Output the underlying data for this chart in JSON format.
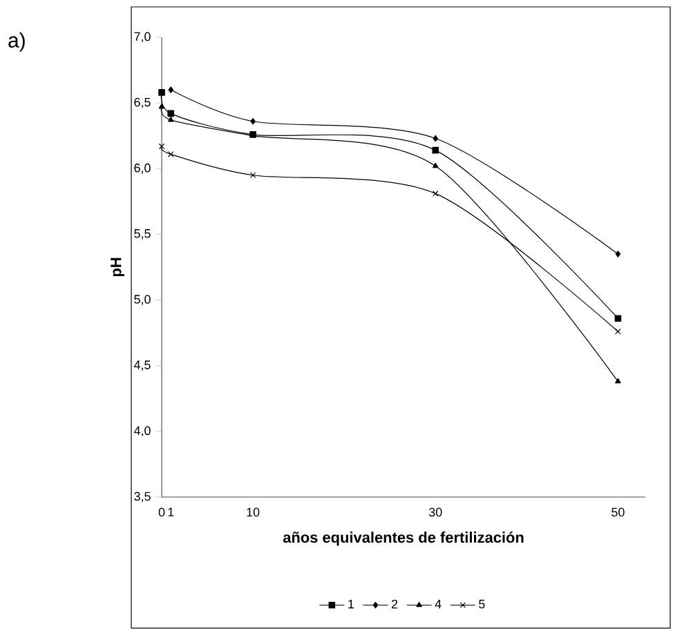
{
  "chart_data": {
    "type": "line",
    "xlabel": "años equivalentes de fertilización",
    "ylabel": "pH",
    "annotations": [
      "a)"
    ],
    "xlim": [
      0,
      53
    ],
    "xticks": [
      0,
      1,
      10,
      30,
      50
    ],
    "ylim": [
      3.5,
      7.0
    ],
    "yticks": [
      {
        "value": 3.5,
        "label": "3,5"
      },
      {
        "value": 4.0,
        "label": "4,0"
      },
      {
        "value": 4.5,
        "label": "4,5"
      },
      {
        "value": 5.0,
        "label": "5,0"
      },
      {
        "value": 5.5,
        "label": "5,5"
      },
      {
        "value": 6.0,
        "label": "6,0"
      },
      {
        "value": 6.5,
        "label": "6,5"
      },
      {
        "value": 7.0,
        "label": "7,0"
      }
    ],
    "x": [
      0,
      1,
      10,
      30,
      50
    ],
    "grid": false,
    "legend": "bottom",
    "line_style": "solid",
    "series": [
      {
        "name": "1",
        "color": "#000000",
        "marker": "square",
        "values": [
          6.58,
          6.42,
          6.26,
          6.14,
          4.86
        ]
      },
      {
        "name": "2",
        "color": "#000000",
        "marker": "diamond",
        "values": [
          null,
          6.6,
          6.36,
          6.23,
          5.35
        ]
      },
      {
        "name": "4",
        "color": "#000000",
        "marker": "triangle",
        "values": [
          6.47,
          6.37,
          6.25,
          6.02,
          4.38
        ]
      },
      {
        "name": "5",
        "color": "#000000",
        "marker": "cross",
        "values": [
          6.17,
          6.11,
          5.95,
          5.81,
          4.76
        ]
      }
    ]
  }
}
